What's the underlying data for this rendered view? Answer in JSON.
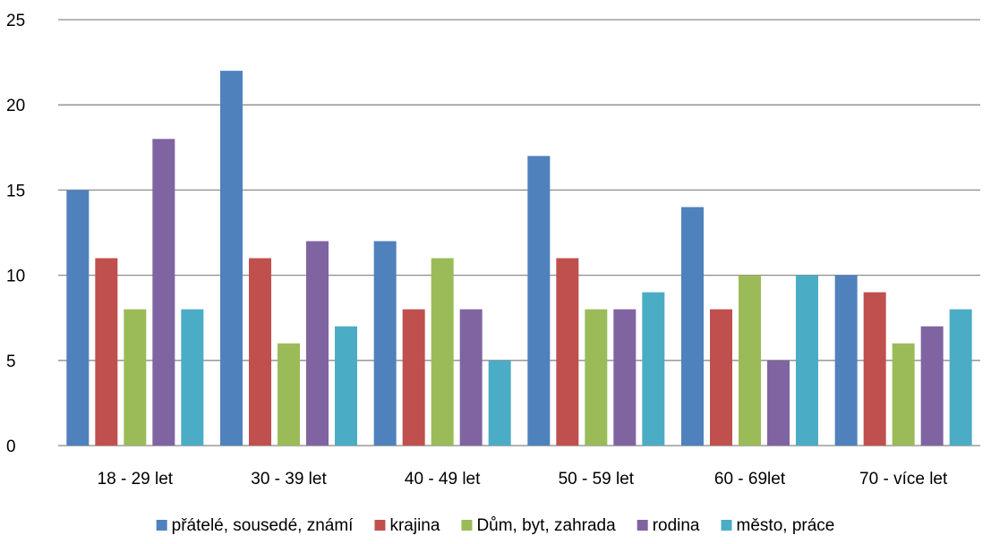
{
  "chart_data": {
    "type": "bar",
    "title": "",
    "xlabel": "",
    "ylabel": "",
    "ylim": [
      0,
      25
    ],
    "yticks": [
      0,
      5,
      10,
      15,
      20,
      25
    ],
    "grid": true,
    "legend_position": "bottom",
    "categories": [
      "18 - 29 let",
      "30 - 39 let",
      "40 - 49 let",
      "50 - 59 let",
      "60 - 69let",
      "70 - více let"
    ],
    "series": [
      {
        "name": "přátelé, sousedé, známí",
        "color": "#4F81BD",
        "values": [
          15,
          22,
          12,
          17,
          14,
          10
        ]
      },
      {
        "name": "krajina",
        "color": "#C0504D",
        "values": [
          11,
          11,
          8,
          11,
          8,
          9
        ]
      },
      {
        "name": "Dům, byt, zahrada",
        "color": "#9BBB59",
        "values": [
          8,
          6,
          11,
          8,
          10,
          6
        ]
      },
      {
        "name": "rodina",
        "color": "#8064A2",
        "values": [
          18,
          12,
          8,
          8,
          5,
          7
        ]
      },
      {
        "name": "město, práce",
        "color": "#4BACC6",
        "values": [
          8,
          7,
          5,
          9,
          10,
          8
        ]
      }
    ]
  }
}
